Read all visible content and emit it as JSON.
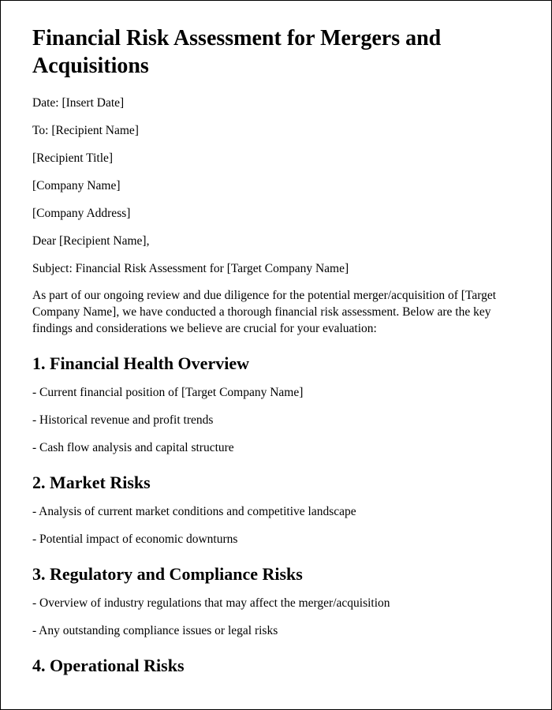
{
  "title": "Financial Risk Assessment for Mergers and Acquisitions",
  "header_lines": {
    "date": "Date: [Insert Date]",
    "to": "To: [Recipient Name]",
    "recipient_title": "[Recipient Title]",
    "company_name": "[Company Name]",
    "company_address": "[Company Address]",
    "salutation": "Dear [Recipient Name],",
    "subject": "Subject: Financial Risk Assessment for [Target Company Name]"
  },
  "intro": "As part of our ongoing review and due diligence for the potential merger/acquisition of [Target Company Name], we have conducted a thorough financial risk assessment. Below are the key findings and considerations we believe are crucial for your evaluation:",
  "sections": {
    "s1": {
      "heading": "1. Financial Health Overview",
      "items": [
        "- Current financial position of [Target Company Name]",
        "- Historical revenue and profit trends",
        "- Cash flow analysis and capital structure"
      ]
    },
    "s2": {
      "heading": "2. Market Risks",
      "items": [
        "- Analysis of current market conditions and competitive landscape",
        "- Potential impact of economic downturns"
      ]
    },
    "s3": {
      "heading": "3. Regulatory and Compliance Risks",
      "items": [
        "- Overview of industry regulations that may affect the merger/acquisition",
        "- Any outstanding compliance issues or legal risks"
      ]
    },
    "s4": {
      "heading": "4. Operational Risks",
      "items": []
    }
  }
}
